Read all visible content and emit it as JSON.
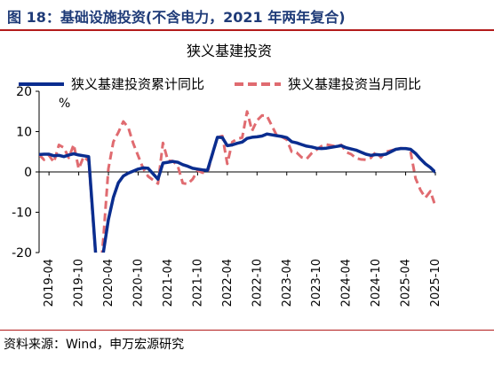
{
  "figure": {
    "title": "图 18：基础设施投资(不含电力，2021 年两年复合)",
    "source": "资料来源：Wind，申万宏源研究"
  },
  "chart_data": {
    "type": "line",
    "title": "狭义基建投资",
    "ylabel": "%",
    "ylim": [
      -20,
      20
    ],
    "yticks": [
      -20,
      -10,
      0,
      10,
      20
    ],
    "xlim": [
      "2019-02",
      "2025-10"
    ],
    "xticks": [
      "2019-04",
      "2019-10",
      "2020-04",
      "2020-10",
      "2021-04",
      "2021-10",
      "2022-04",
      "2022-10",
      "2023-04",
      "2023-10",
      "2024-04",
      "2024-10",
      "2025-04",
      "2025-10"
    ],
    "legend_position": "top",
    "grid": false,
    "series": [
      {
        "name": "狭义基建投资累计同比",
        "style": "solid",
        "color": "#0a2d8f",
        "points": [
          [
            "2019-02",
            4.3
          ],
          [
            "2019-03",
            4.4
          ],
          [
            "2019-04",
            4.4
          ],
          [
            "2019-05",
            4.0
          ],
          [
            "2019-06",
            4.1
          ],
          [
            "2019-07",
            3.8
          ],
          [
            "2019-08",
            4.2
          ],
          [
            "2019-09",
            4.5
          ],
          [
            "2019-10",
            4.2
          ],
          [
            "2019-11",
            4.0
          ],
          [
            "2019-12",
            3.8
          ],
          [
            "2020-02",
            -30.3
          ],
          [
            "2020-03",
            -19.7
          ],
          [
            "2020-04",
            -11.8
          ],
          [
            "2020-05",
            -6.3
          ],
          [
            "2020-06",
            -2.7
          ],
          [
            "2020-07",
            -1.0
          ],
          [
            "2020-08",
            -0.3
          ],
          [
            "2020-09",
            0.2
          ],
          [
            "2020-10",
            0.7
          ],
          [
            "2020-11",
            1.0
          ],
          [
            "2020-12",
            0.9
          ],
          [
            "2021-02",
            -1.8
          ],
          [
            "2021-03",
            2.2
          ],
          [
            "2021-04",
            2.4
          ],
          [
            "2021-05",
            2.6
          ],
          [
            "2021-06",
            2.4
          ],
          [
            "2021-07",
            1.8
          ],
          [
            "2021-08",
            1.4
          ],
          [
            "2021-09",
            0.9
          ],
          [
            "2021-10",
            0.7
          ],
          [
            "2021-11",
            0.5
          ],
          [
            "2021-12",
            0.4
          ],
          [
            "2022-02",
            8.6
          ],
          [
            "2022-03",
            8.5
          ],
          [
            "2022-04",
            6.5
          ],
          [
            "2022-05",
            6.7
          ],
          [
            "2022-06",
            7.1
          ],
          [
            "2022-07",
            7.4
          ],
          [
            "2022-08",
            8.3
          ],
          [
            "2022-09",
            8.6
          ],
          [
            "2022-10",
            8.7
          ],
          [
            "2022-11",
            8.9
          ],
          [
            "2022-12",
            9.4
          ],
          [
            "2023-02",
            9.0
          ],
          [
            "2023-03",
            8.8
          ],
          [
            "2023-04",
            8.5
          ],
          [
            "2023-05",
            7.5
          ],
          [
            "2023-06",
            7.2
          ],
          [
            "2023-07",
            6.8
          ],
          [
            "2023-08",
            6.4
          ],
          [
            "2023-09",
            6.2
          ],
          [
            "2023-10",
            5.9
          ],
          [
            "2023-11",
            5.8
          ],
          [
            "2023-12",
            5.9
          ],
          [
            "2024-02",
            6.3
          ],
          [
            "2024-03",
            6.5
          ],
          [
            "2024-04",
            6.0
          ],
          [
            "2024-05",
            5.7
          ],
          [
            "2024-06",
            5.4
          ],
          [
            "2024-07",
            4.9
          ],
          [
            "2024-08",
            4.4
          ],
          [
            "2024-09",
            4.1
          ],
          [
            "2024-10",
            4.3
          ],
          [
            "2024-11",
            4.2
          ],
          [
            "2024-12",
            4.4
          ],
          [
            "2025-02",
            5.6
          ],
          [
            "2025-03",
            5.8
          ],
          [
            "2025-04",
            5.8
          ],
          [
            "2025-05",
            5.6
          ],
          [
            "2025-06",
            4.6
          ],
          [
            "2025-07",
            3.2
          ],
          [
            "2025-08",
            2.0
          ],
          [
            "2025-09",
            1.1
          ],
          [
            "2025-10",
            -0.1
          ]
        ]
      },
      {
        "name": "狭义基建投资当月同比",
        "style": "dashed",
        "color": "#e06b70",
        "points": [
          [
            "2019-02",
            4.3
          ],
          [
            "2019-03",
            3.0
          ],
          [
            "2019-04",
            4.1
          ],
          [
            "2019-05",
            2.4
          ],
          [
            "2019-06",
            6.7
          ],
          [
            "2019-07",
            6.0
          ],
          [
            "2019-08",
            3.5
          ],
          [
            "2019-09",
            6.8
          ],
          [
            "2019-10",
            0.8
          ],
          [
            "2019-11",
            3.8
          ],
          [
            "2019-12",
            2.7
          ],
          [
            "2020-02",
            -30.3
          ],
          [
            "2020-03",
            -16.0
          ],
          [
            "2020-04",
            0.8
          ],
          [
            "2020-05",
            7.5
          ],
          [
            "2020-06",
            9.8
          ],
          [
            "2020-07",
            12.5
          ],
          [
            "2020-08",
            11.0
          ],
          [
            "2020-09",
            7.1
          ],
          [
            "2020-10",
            4.0
          ],
          [
            "2020-11",
            0.9
          ],
          [
            "2020-12",
            -1.1
          ],
          [
            "2021-02",
            -2.9
          ],
          [
            "2021-03",
            7.2
          ],
          [
            "2021-04",
            2.8
          ],
          [
            "2021-05",
            2.7
          ],
          [
            "2021-06",
            1.5
          ],
          [
            "2021-07",
            -2.8
          ],
          [
            "2021-08",
            -3.0
          ],
          [
            "2021-09",
            -1.8
          ],
          [
            "2021-10",
            0.3
          ],
          [
            "2021-11",
            -0.2
          ],
          [
            "2021-12",
            -0.1
          ],
          [
            "2022-02",
            8.6
          ],
          [
            "2022-03",
            8.9
          ],
          [
            "2022-04",
            2.0
          ],
          [
            "2022-05",
            7.4
          ],
          [
            "2022-06",
            8.2
          ],
          [
            "2022-07",
            8.5
          ],
          [
            "2022-08",
            15.0
          ],
          [
            "2022-09",
            10.2
          ],
          [
            "2022-10",
            12.8
          ],
          [
            "2022-11",
            14.0
          ],
          [
            "2022-12",
            13.9
          ],
          [
            "2023-02",
            9.0
          ],
          [
            "2023-03",
            8.7
          ],
          [
            "2023-04",
            8.0
          ],
          [
            "2023-05",
            5.0
          ],
          [
            "2023-06",
            4.8
          ],
          [
            "2023-07",
            3.6
          ],
          [
            "2023-08",
            3.2
          ],
          [
            "2023-09",
            4.6
          ],
          [
            "2023-10",
            5.5
          ],
          [
            "2023-11",
            6.4
          ],
          [
            "2023-12",
            6.8
          ],
          [
            "2024-02",
            6.3
          ],
          [
            "2024-03",
            6.7
          ],
          [
            "2024-04",
            4.9
          ],
          [
            "2024-05",
            4.4
          ],
          [
            "2024-06",
            3.4
          ],
          [
            "2024-07",
            3.1
          ],
          [
            "2024-08",
            3.0
          ],
          [
            "2024-09",
            3.5
          ],
          [
            "2024-10",
            5.0
          ],
          [
            "2024-11",
            3.6
          ],
          [
            "2024-12",
            5.0
          ],
          [
            "2025-02",
            5.6
          ],
          [
            "2025-03",
            5.9
          ],
          [
            "2025-04",
            5.8
          ],
          [
            "2025-05",
            5.0
          ],
          [
            "2025-06",
            -1.6
          ],
          [
            "2025-07",
            -4.5
          ],
          [
            "2025-08",
            -6.4
          ],
          [
            "2025-09",
            -4.8
          ],
          [
            "2025-10",
            -8.5
          ]
        ]
      }
    ]
  }
}
